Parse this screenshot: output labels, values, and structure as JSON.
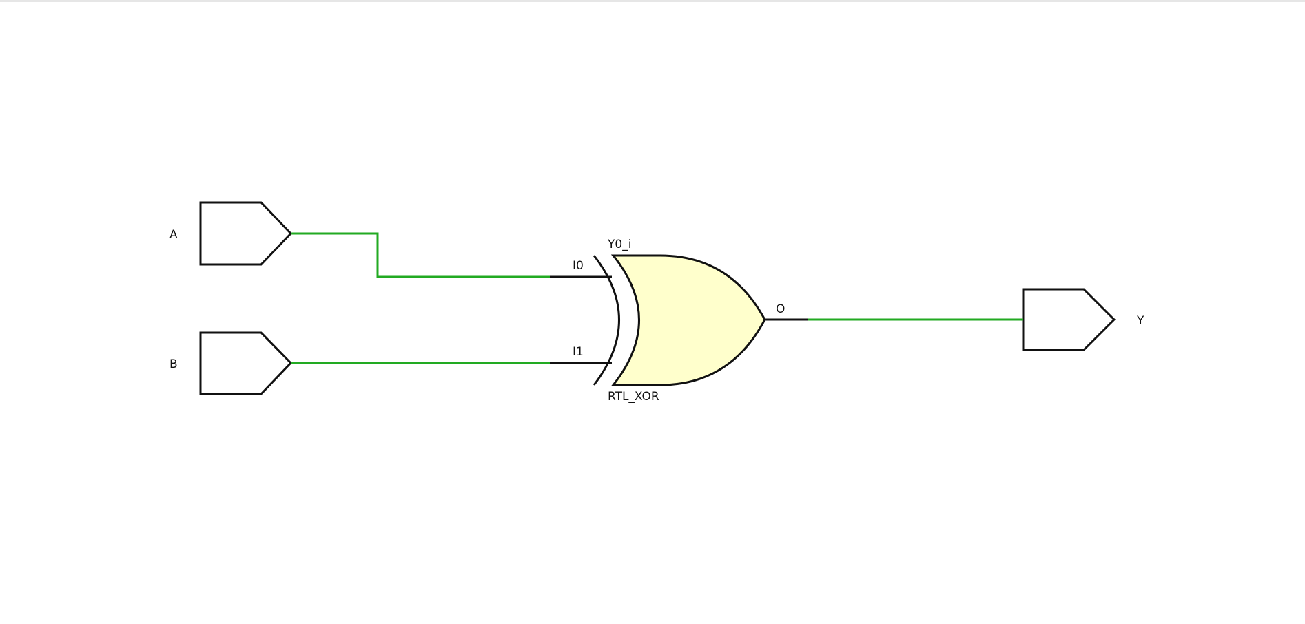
{
  "colors": {
    "net": "#22aa22",
    "gate_fill": "#ffffcc",
    "outline": "#111111",
    "background": "#ffffff"
  },
  "ports": {
    "input_a": "A",
    "input_b": "B",
    "output_y": "Y"
  },
  "gate": {
    "instance": "Y0_i",
    "type": "RTL_XOR",
    "pin_i0": "I0",
    "pin_i1": "I1",
    "pin_o": "O"
  }
}
